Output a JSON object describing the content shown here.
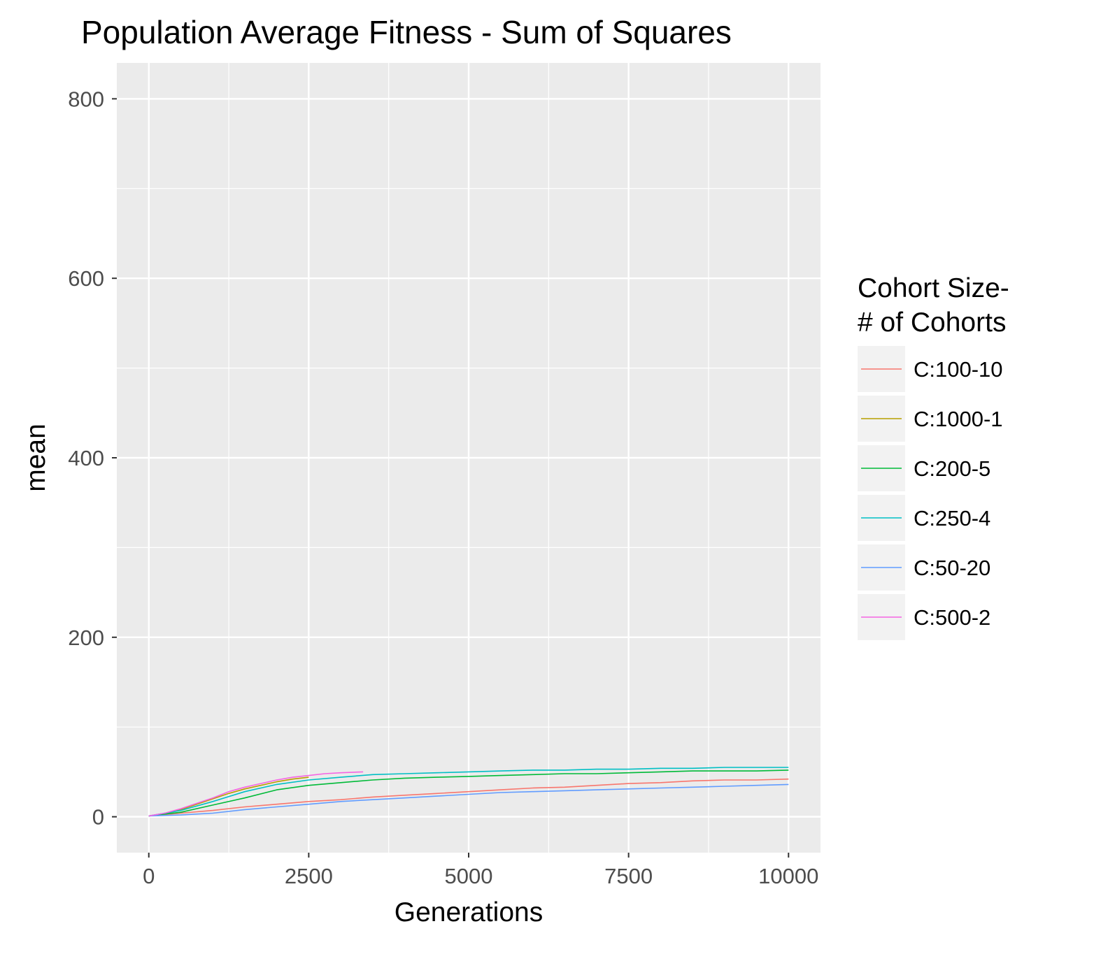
{
  "chart_data": {
    "type": "line",
    "title": "Population Average Fitness - Sum of Squares",
    "xlabel": "Generations",
    "ylabel": "mean",
    "xlim": [
      -500,
      10500
    ],
    "ylim": [
      -40,
      840
    ],
    "xticks": [
      0,
      2500,
      5000,
      7500,
      10000
    ],
    "xtick_labels": [
      "0",
      "2500",
      "5000",
      "7500",
      "10000"
    ],
    "yticks": [
      0,
      200,
      400,
      600,
      800
    ],
    "ytick_labels": [
      "0",
      "200",
      "400",
      "600",
      "800"
    ],
    "grid": true,
    "legend_title_lines": [
      "Cohort Size-",
      " # of Cohorts"
    ],
    "legend_position": "right",
    "series": [
      {
        "name": "C:100-10",
        "color": "#F8766D",
        "x": [
          0,
          500,
          1000,
          1500,
          2000,
          2500,
          3000,
          3500,
          4000,
          4500,
          5000,
          5500,
          6000,
          6500,
          7000,
          7500,
          8000,
          8500,
          9000,
          9500,
          10000
        ],
        "y": [
          1,
          4,
          7,
          11,
          14,
          17,
          19,
          22,
          24,
          26,
          28,
          30,
          32,
          33,
          35,
          37,
          38,
          40,
          41,
          41,
          42
        ]
      },
      {
        "name": "C:1000-1",
        "color": "#B79F00",
        "x": [
          0,
          250,
          500,
          750,
          1000,
          1250,
          1500,
          1750,
          2000,
          2250,
          2500
        ],
        "y": [
          1,
          3,
          8,
          14,
          20,
          26,
          31,
          35,
          39,
          42,
          44
        ]
      },
      {
        "name": "C:200-5",
        "color": "#00BA38",
        "x": [
          0,
          500,
          1000,
          1500,
          2000,
          2500,
          3000,
          3500,
          4000,
          4500,
          5000,
          5500,
          6000,
          6500,
          7000,
          7500,
          8000,
          8500,
          9000,
          9500,
          10000
        ],
        "y": [
          1,
          5,
          13,
          21,
          30,
          35,
          38,
          41,
          43,
          44,
          45,
          46,
          47,
          48,
          48,
          49,
          50,
          51,
          51,
          51,
          52
        ]
      },
      {
        "name": "C:250-4",
        "color": "#00BFC4",
        "x": [
          0,
          500,
          1000,
          1500,
          2000,
          2500,
          3000,
          3500,
          4000,
          4500,
          5000,
          5500,
          6000,
          6500,
          7000,
          7500,
          8000,
          8500,
          9000,
          9500,
          10000
        ],
        "y": [
          1,
          7,
          17,
          28,
          36,
          41,
          44,
          47,
          48,
          49,
          50,
          51,
          52,
          52,
          53,
          53,
          54,
          54,
          55,
          55,
          55
        ]
      },
      {
        "name": "C:50-20",
        "color": "#619CFF",
        "x": [
          0,
          500,
          1000,
          1500,
          2000,
          2500,
          3000,
          3500,
          4000,
          4500,
          5000,
          5500,
          6000,
          6500,
          7000,
          7500,
          8000,
          8500,
          9000,
          9500,
          10000
        ],
        "y": [
          1,
          2,
          4,
          8,
          11,
          14,
          17,
          19,
          21,
          23,
          25,
          27,
          28,
          29,
          30,
          31,
          32,
          33,
          34,
          35,
          36
        ]
      },
      {
        "name": "C:500-2",
        "color": "#F564E3",
        "x": [
          0,
          250,
          500,
          750,
          1000,
          1250,
          1500,
          1750,
          2000,
          2250,
          2500,
          2750,
          3000,
          3350
        ],
        "y": [
          1,
          4,
          9,
          15,
          21,
          28,
          33,
          37,
          41,
          44,
          46,
          48,
          49,
          50
        ]
      }
    ]
  }
}
